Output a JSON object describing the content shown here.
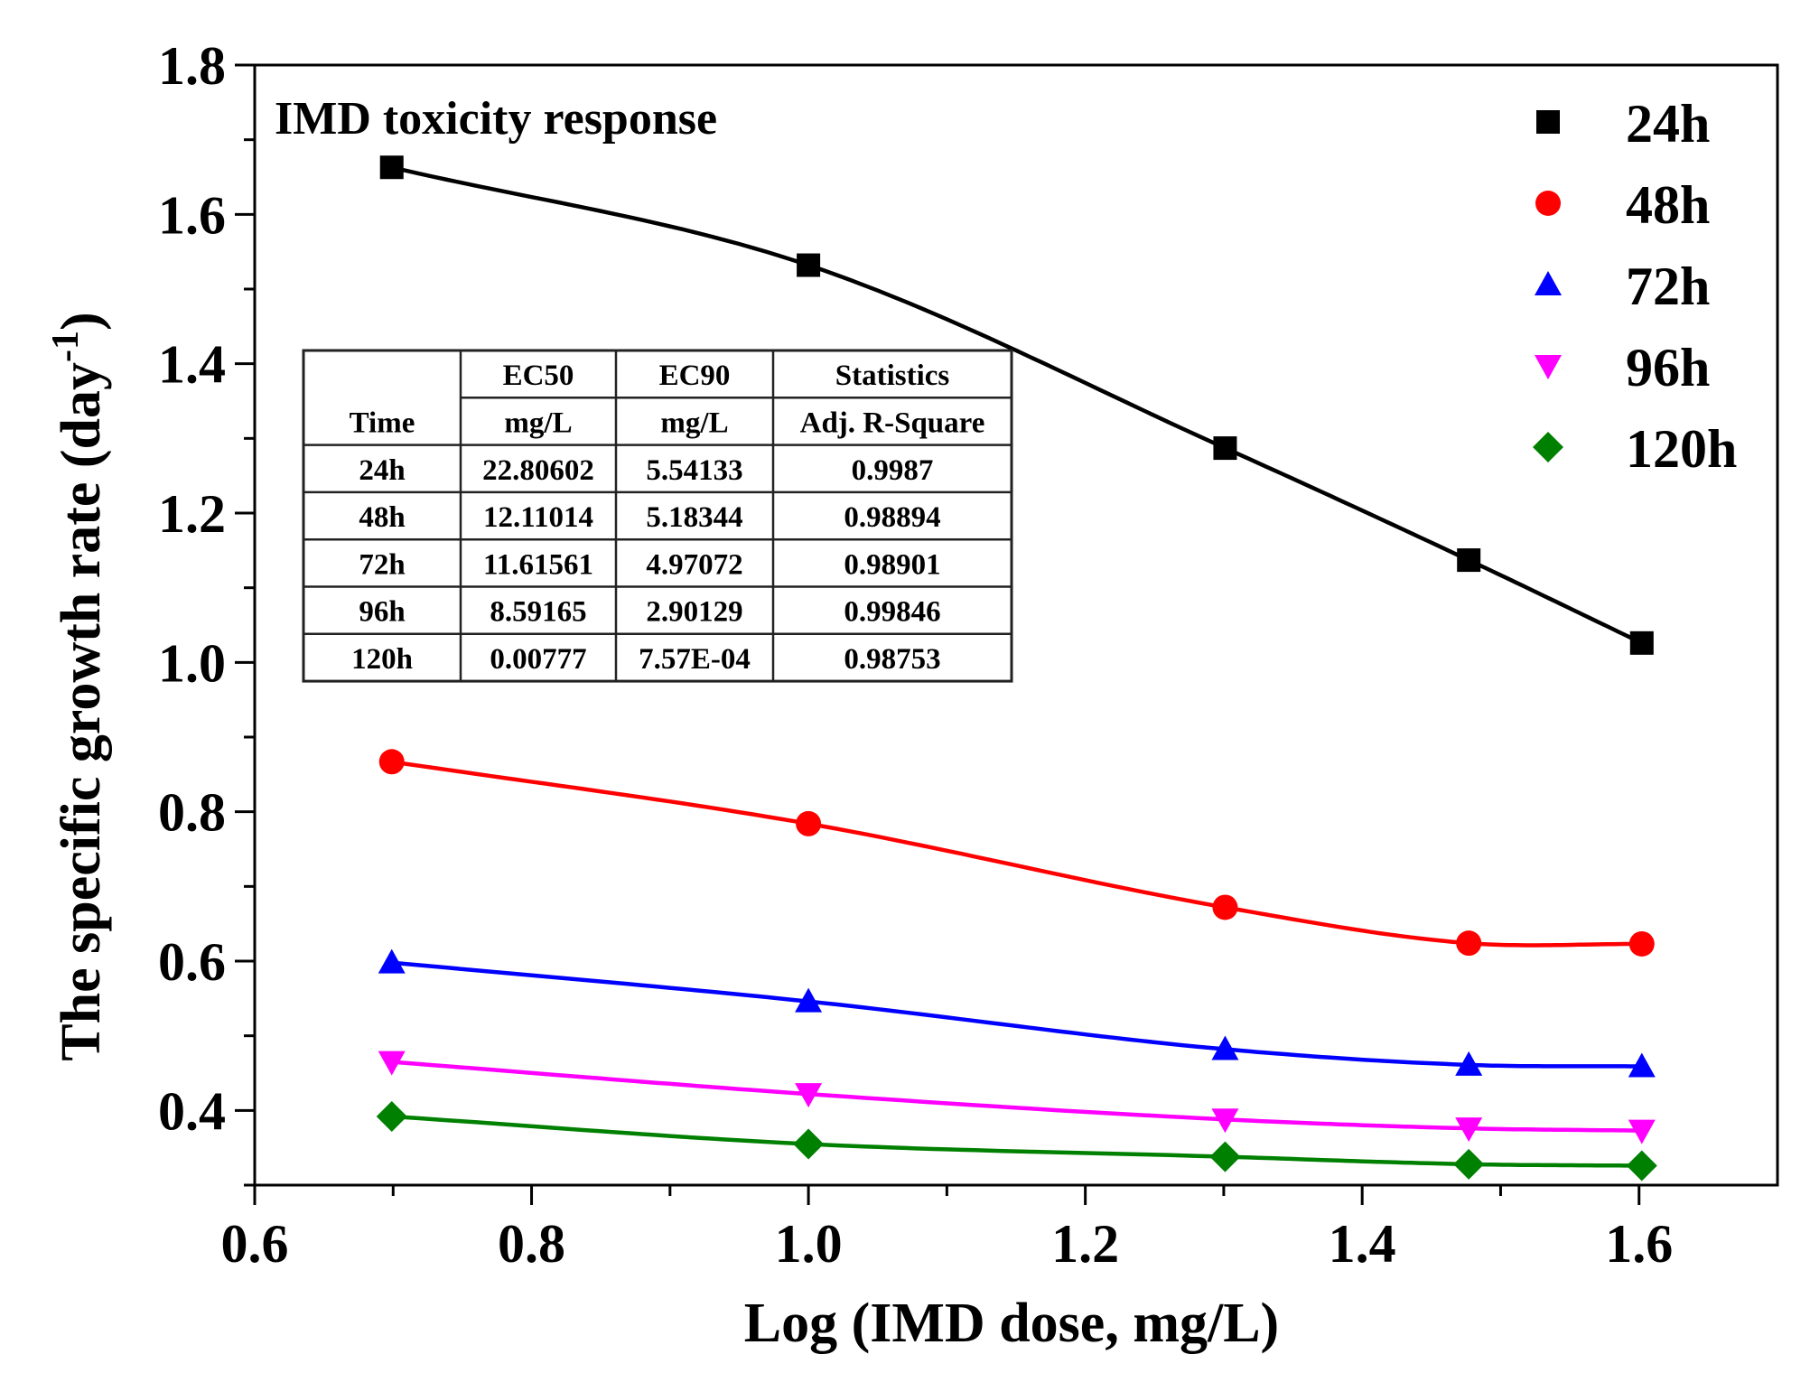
{
  "chart_data": {
    "type": "line",
    "title": "IMD toxicity response",
    "xlabel": "Log (IMD dose, mg/L)",
    "ylabel": "The specific growth rate (day",
    "ylabel_superscript": "-1",
    "ylabel_close": ")",
    "xlim": [
      0.6,
      1.7
    ],
    "ylim": [
      0.3,
      1.8
    ],
    "xticks": [
      0.6,
      0.8,
      1.0,
      1.2,
      1.4,
      1.6
    ],
    "xtick_labels": [
      "0.6",
      "0.8",
      "1.0",
      "1.2",
      "1.4",
      "1.6"
    ],
    "yticks": [
      0.4,
      0.6,
      0.8,
      1.0,
      1.2,
      1.4,
      1.6,
      1.8
    ],
    "ytick_labels": [
      "0.4",
      "0.6",
      "0.8",
      "1.0",
      "1.2",
      "1.4",
      "1.6",
      "1.8"
    ],
    "grid": false,
    "legend_position": "top-right",
    "x": [
      0.699,
      1.0,
      1.301,
      1.477,
      1.602
    ],
    "series": [
      {
        "name": "24h",
        "marker": "square",
        "color": "#000000",
        "values": [
          1.663,
          1.532,
          1.287,
          1.137,
          1.026
        ]
      },
      {
        "name": "48h",
        "marker": "circle",
        "color": "#ff0000",
        "values": [
          0.867,
          0.784,
          0.672,
          0.624,
          0.623
        ]
      },
      {
        "name": "72h",
        "marker": "triangle-up",
        "color": "#0000ff",
        "values": [
          0.598,
          0.546,
          0.482,
          0.461,
          0.459
        ]
      },
      {
        "name": "96h",
        "marker": "triangle-down",
        "color": "#ff00ff",
        "values": [
          0.465,
          0.422,
          0.388,
          0.376,
          0.373
        ]
      },
      {
        "name": "120h",
        "marker": "diamond",
        "color": "#008000",
        "values": [
          0.392,
          0.355,
          0.338,
          0.328,
          0.326
        ]
      }
    ],
    "inset_table": {
      "header_row1": [
        "",
        "EC50",
        "EC90",
        "Statistics"
      ],
      "header_row2": [
        "Time",
        "mg/L",
        "mg/L",
        "Adj. R-Square"
      ],
      "rows": [
        [
          "24h",
          "22.80602",
          "5.54133",
          "0.9987"
        ],
        [
          "48h",
          "12.11014",
          "5.18344",
          "0.98894"
        ],
        [
          "72h",
          "11.61561",
          "4.97072",
          "0.98901"
        ],
        [
          "96h",
          "8.59165",
          "2.90129",
          "0.99846"
        ],
        [
          "120h",
          "0.00777",
          "7.57E-04",
          "0.98753"
        ]
      ]
    }
  }
}
